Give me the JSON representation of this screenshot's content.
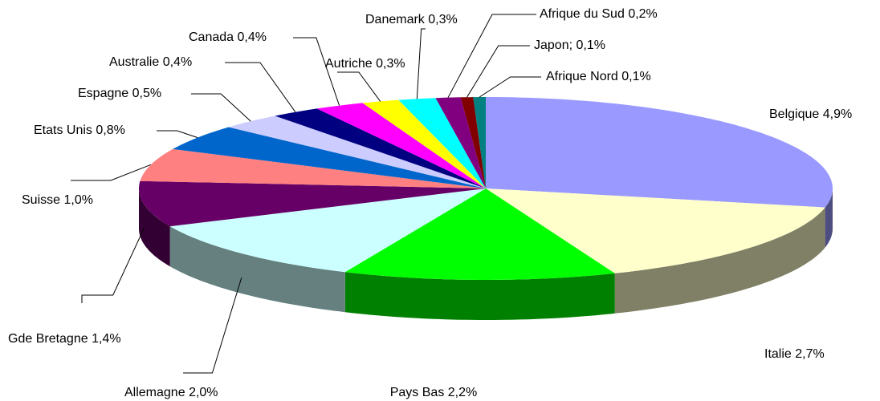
{
  "chart_data": {
    "type": "pie3d",
    "categories": [
      "Belgique",
      "Italie",
      "Pays Bas",
      "Allemagne",
      "Gde Bretagne",
      "Suisse",
      "Etats Unis",
      "Espagne",
      "Australie",
      "Canada",
      "Autriche",
      "Danemark",
      "Afrique du Sud",
      "Japon;",
      "Afrique Nord"
    ],
    "values": [
      4.9,
      2.7,
      2.2,
      2.0,
      1.4,
      1.0,
      0.8,
      0.5,
      0.4,
      0.4,
      0.3,
      0.3,
      0.2,
      0.1,
      0.1
    ],
    "value_labels": [
      "4,9%",
      "2,7%",
      "2,2%",
      "2,0%",
      "1,4%",
      "1,0%",
      "0,8%",
      "0,5%",
      "0,4%",
      "0,4%",
      "0,3%",
      "0,3%",
      "0,2%",
      "0,1%",
      "0,1%"
    ],
    "colors": [
      "#9999ff",
      "#ffffcc",
      "#00ff00",
      "#ccffff",
      "#660066",
      "#ff8080",
      "#0066cc",
      "#ccccff",
      "#000080",
      "#ff00ff",
      "#ffff00",
      "#00ffff",
      "#800080",
      "#800000",
      "#008080"
    ]
  }
}
